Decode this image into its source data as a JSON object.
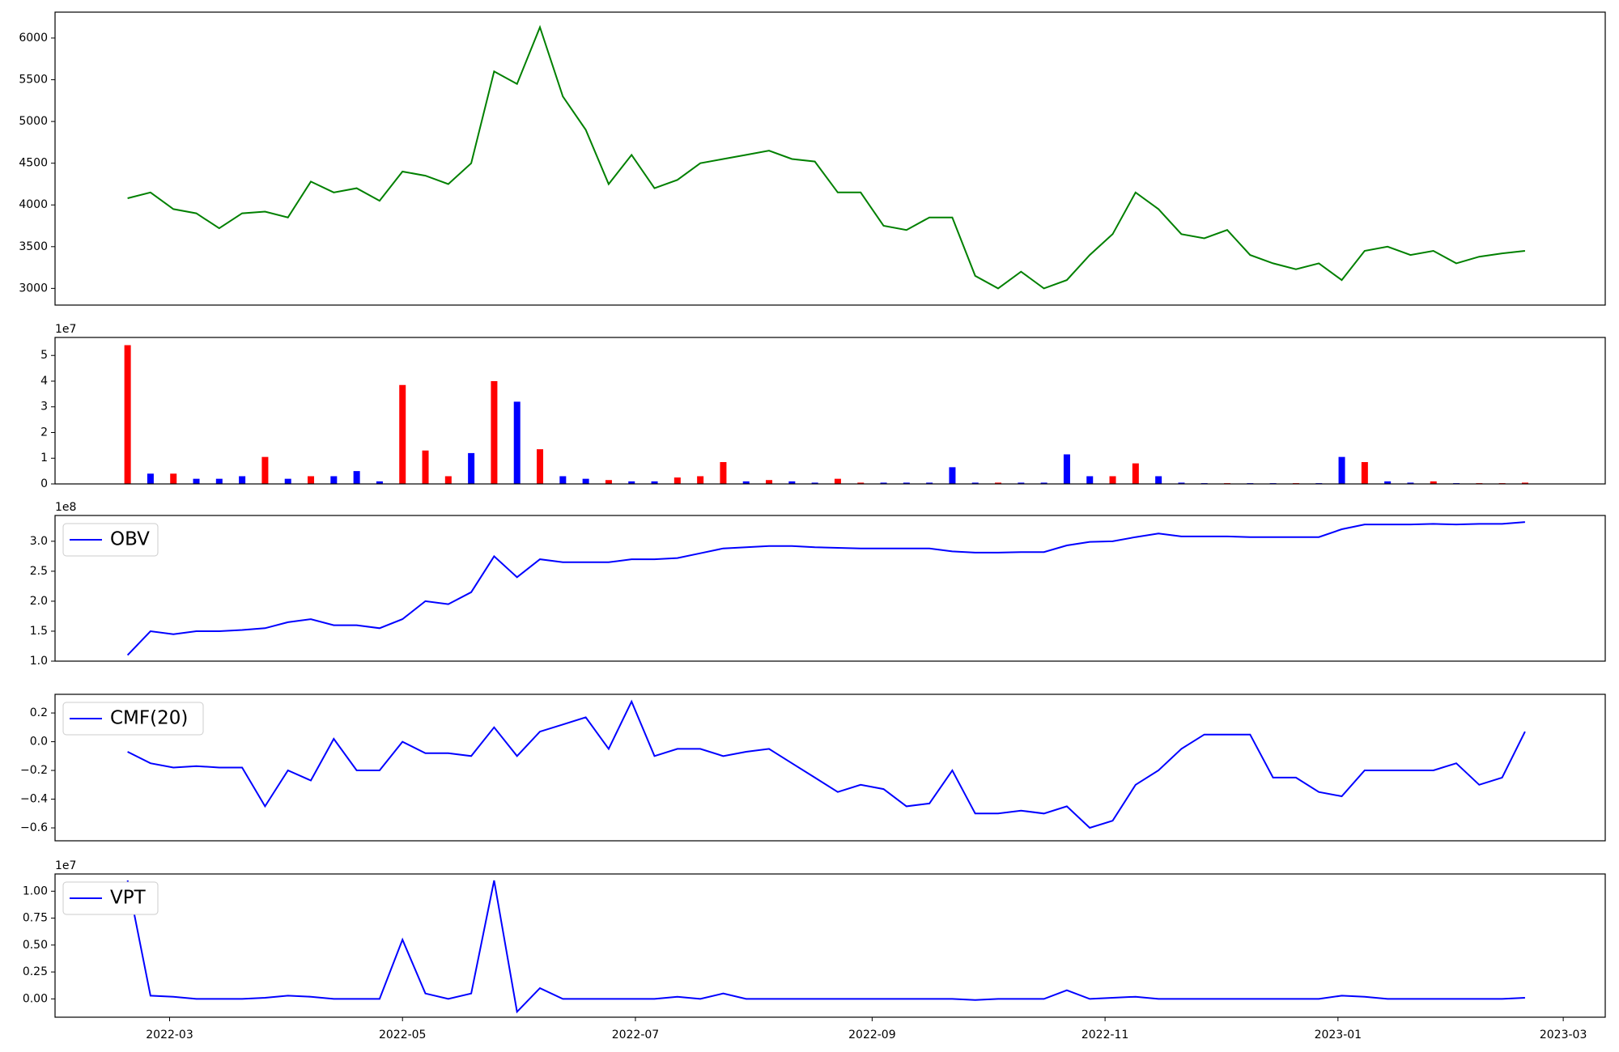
{
  "chart_data": [
    {
      "type": "line",
      "color": "#008000",
      "x": [
        48,
        54,
        60,
        66,
        72,
        78,
        84,
        90,
        96,
        102,
        108,
        114,
        120,
        126,
        132,
        138,
        144,
        150,
        156,
        162,
        168,
        174,
        180,
        186,
        192,
        198,
        204,
        210,
        216,
        222,
        228,
        234,
        240,
        246,
        252,
        258,
        264,
        270,
        276,
        282,
        288,
        294,
        300,
        306,
        312,
        318,
        324,
        330,
        336,
        342,
        348,
        354,
        360,
        366,
        372,
        378,
        384,
        390,
        396,
        402,
        408,
        414
      ],
      "values": [
        4080,
        4150,
        3950,
        3900,
        3720,
        3900,
        3920,
        3850,
        4280,
        4150,
        4200,
        4050,
        4400,
        4350,
        4250,
        4500,
        5600,
        5450,
        6130,
        5300,
        4900,
        4250,
        4600,
        4200,
        4300,
        4500,
        4550,
        4600,
        4650,
        4550,
        4520,
        4150,
        4150,
        3750,
        3700,
        3850,
        3850,
        3150,
        3000,
        3200,
        3000,
        3100,
        3400,
        3650,
        4150,
        3950,
        3650,
        3600,
        3700,
        3400,
        3300,
        3230,
        3300,
        3100,
        3450,
        3500,
        3400,
        3450,
        3300,
        3380,
        3420,
        3450
      ],
      "xlim": [
        29,
        435
      ],
      "ylim": [
        2800,
        6310
      ],
      "yticks": [
        3000,
        3500,
        4000,
        4500,
        5000,
        5500,
        6000
      ]
    },
    {
      "type": "bar",
      "y_offset": "1e7",
      "x": [
        48,
        54,
        60,
        66,
        72,
        78,
        84,
        90,
        96,
        102,
        108,
        114,
        120,
        126,
        132,
        138,
        144,
        150,
        156,
        162,
        168,
        174,
        180,
        186,
        192,
        198,
        204,
        210,
        216,
        222,
        228,
        234,
        240,
        246,
        252,
        258,
        264,
        270,
        276,
        282,
        288,
        294,
        300,
        306,
        312,
        318,
        324,
        330,
        336,
        342,
        348,
        354,
        360,
        366,
        372,
        378,
        384,
        390,
        396,
        402,
        408,
        414
      ],
      "values": [
        5.4,
        0.4,
        0.4,
        0.2,
        0.2,
        0.3,
        1.05,
        0.2,
        0.3,
        0.3,
        0.5,
        0.1,
        3.85,
        1.3,
        0.3,
        1.2,
        4.0,
        3.2,
        1.35,
        0.3,
        0.2,
        0.15,
        0.1,
        0.1,
        0.25,
        0.3,
        0.85,
        0.1,
        0.15,
        0.1,
        0.05,
        0.2,
        0.05,
        0.05,
        0.05,
        0.05,
        0.65,
        0.05,
        0.05,
        0.05,
        0.05,
        1.15,
        0.3,
        0.3,
        0.8,
        0.3,
        0.05,
        0.03,
        0.03,
        0.03,
        0.03,
        0.03,
        0.03,
        1.05,
        0.85,
        0.1,
        0.05,
        0.1,
        0.03,
        0.03,
        0.03,
        0.05
      ],
      "colors": [
        "#ff0000",
        "#0000ff",
        "#ff0000",
        "#0000ff",
        "#0000ff",
        "#0000ff",
        "#ff0000",
        "#0000ff",
        "#ff0000",
        "#0000ff",
        "#0000ff",
        "#0000ff",
        "#ff0000",
        "#ff0000",
        "#ff0000",
        "#0000ff",
        "#ff0000",
        "#0000ff",
        "#ff0000",
        "#0000ff",
        "#0000ff",
        "#ff0000",
        "#0000ff",
        "#0000ff",
        "#ff0000",
        "#ff0000",
        "#ff0000",
        "#0000ff",
        "#ff0000",
        "#0000ff",
        "#0000ff",
        "#ff0000",
        "#ff0000",
        "#0000ff",
        "#0000ff",
        "#0000ff",
        "#0000ff",
        "#0000ff",
        "#ff0000",
        "#0000ff",
        "#0000ff",
        "#0000ff",
        "#0000ff",
        "#ff0000",
        "#ff0000",
        "#0000ff",
        "#0000ff",
        "#0000ff",
        "#ff0000",
        "#0000ff",
        "#0000ff",
        "#ff0000",
        "#0000ff",
        "#0000ff",
        "#ff0000",
        "#0000ff",
        "#0000ff",
        "#ff0000",
        "#0000ff",
        "#ff0000",
        "#ff0000",
        "#ff0000"
      ],
      "xlim": [
        29,
        435
      ],
      "ylim": [
        0,
        5.7
      ],
      "yticks": [
        0,
        1,
        2,
        3,
        4,
        5
      ]
    },
    {
      "type": "line",
      "y_offset": "1e8",
      "legend": "upper left",
      "x": [
        48,
        54,
        60,
        66,
        72,
        78,
        84,
        90,
        96,
        102,
        108,
        114,
        120,
        126,
        132,
        138,
        144,
        150,
        156,
        162,
        168,
        174,
        180,
        186,
        192,
        198,
        204,
        210,
        216,
        222,
        228,
        234,
        240,
        246,
        252,
        258,
        264,
        270,
        276,
        282,
        288,
        294,
        300,
        306,
        312,
        318,
        324,
        330,
        336,
        342,
        348,
        354,
        360,
        366,
        372,
        378,
        384,
        390,
        396,
        402,
        408,
        414
      ],
      "series": [
        {
          "name": "OBV",
          "color": "#0000ff",
          "values": [
            1.1,
            1.5,
            1.45,
            1.5,
            1.5,
            1.52,
            1.55,
            1.65,
            1.7,
            1.6,
            1.6,
            1.55,
            1.7,
            2.0,
            1.95,
            2.15,
            2.75,
            2.4,
            2.7,
            2.65,
            2.65,
            2.65,
            2.7,
            2.7,
            2.72,
            2.8,
            2.88,
            2.9,
            2.92,
            2.92,
            2.9,
            2.89,
            2.88,
            2.88,
            2.88,
            2.88,
            2.83,
            2.81,
            2.81,
            2.82,
            2.82,
            2.93,
            2.99,
            3.0,
            3.07,
            3.13,
            3.08,
            3.08,
            3.08,
            3.07,
            3.07,
            3.07,
            3.07,
            3.2,
            3.28,
            3.28,
            3.28,
            3.29,
            3.28,
            3.29,
            3.29,
            3.32
          ]
        }
      ],
      "xlim": [
        29,
        435
      ],
      "ylim": [
        1.0,
        3.43
      ],
      "yticks": [
        {
          "value": 1.0,
          "label": "1.0"
        },
        1.5,
        {
          "value": 2.0,
          "label": "2.0"
        },
        2.5,
        {
          "value": 3.0,
          "label": "3.0"
        }
      ]
    },
    {
      "type": "line",
      "legend": "upper left",
      "x": [
        48,
        54,
        60,
        66,
        72,
        78,
        84,
        90,
        96,
        102,
        108,
        114,
        120,
        126,
        132,
        138,
        144,
        150,
        156,
        162,
        168,
        174,
        180,
        186,
        192,
        198,
        204,
        210,
        216,
        222,
        228,
        234,
        240,
        246,
        252,
        258,
        264,
        270,
        276,
        282,
        288,
        294,
        300,
        306,
        312,
        318,
        324,
        330,
        336,
        342,
        348,
        354,
        360,
        366,
        372,
        378,
        384,
        390,
        396,
        402,
        408,
        414
      ],
      "series": [
        {
          "name": "CMF(20)",
          "color": "#0000ff",
          "values": [
            -0.07,
            -0.15,
            -0.18,
            -0.17,
            -0.18,
            -0.18,
            -0.45,
            -0.2,
            -0.27,
            0.02,
            -0.2,
            -0.2,
            0.0,
            -0.08,
            -0.08,
            -0.1,
            0.1,
            -0.1,
            0.07,
            0.12,
            0.17,
            -0.05,
            0.28,
            -0.1,
            -0.05,
            -0.05,
            -0.1,
            -0.07,
            -0.05,
            -0.15,
            -0.25,
            -0.35,
            -0.3,
            -0.33,
            -0.45,
            -0.43,
            -0.2,
            -0.5,
            -0.5,
            -0.48,
            -0.5,
            -0.45,
            -0.6,
            -0.55,
            -0.3,
            -0.2,
            -0.05,
            0.05,
            0.05,
            0.05,
            -0.25,
            -0.25,
            -0.35,
            -0.38,
            -0.2,
            -0.2,
            -0.2,
            -0.2,
            -0.15,
            -0.3,
            -0.25,
            0.07
          ]
        }
      ],
      "xlim": [
        29,
        435
      ],
      "ylim": [
        -0.69,
        0.33
      ],
      "yticks": [
        {
          "value": -0.6,
          "label": "−0.6"
        },
        {
          "value": -0.4,
          "label": "−0.4"
        },
        {
          "value": -0.2,
          "label": "−0.2"
        },
        {
          "value": 0.0,
          "label": "0.0"
        },
        0.2
      ]
    },
    {
      "type": "line",
      "y_offset": "1e7",
      "legend": "upper left",
      "x": [
        48,
        54,
        60,
        66,
        72,
        78,
        84,
        90,
        96,
        102,
        108,
        114,
        120,
        126,
        132,
        138,
        144,
        150,
        156,
        162,
        168,
        174,
        180,
        186,
        192,
        198,
        204,
        210,
        216,
        222,
        228,
        234,
        240,
        246,
        252,
        258,
        264,
        270,
        276,
        282,
        288,
        294,
        300,
        306,
        312,
        318,
        324,
        330,
        336,
        342,
        348,
        354,
        360,
        366,
        372,
        378,
        384,
        390,
        396,
        402,
        408,
        414
      ],
      "series": [
        {
          "name": "VPT",
          "color": "#0000ff",
          "values": [
            1.1,
            0.03,
            0.02,
            0,
            0,
            0,
            0.01,
            0.03,
            0.02,
            0,
            0,
            0,
            0.55,
            0.05,
            0,
            0.05,
            1.1,
            -0.12,
            0.1,
            0,
            0,
            0,
            0,
            0,
            0.02,
            0,
            0.05,
            0,
            0,
            0,
            0,
            0,
            0,
            0,
            0,
            0,
            0,
            -0.01,
            0,
            0,
            0,
            0.08,
            0,
            0.01,
            0.02,
            0,
            0,
            0,
            0,
            0,
            0,
            0,
            0,
            0.03,
            0.02,
            0,
            0,
            0,
            0,
            0,
            0,
            0.01
          ]
        }
      ],
      "xlim": [
        29,
        435
      ],
      "ylim": [
        -0.17,
        1.16
      ],
      "yticks": [
        {
          "value": 0,
          "label": "0.00"
        },
        0.25,
        {
          "value": 0.5,
          "label": "0.50"
        },
        0.75,
        {
          "value": 1.0,
          "label": "1.00"
        }
      ],
      "xticks": [
        {
          "value": 59,
          "label": "2022-03"
        },
        {
          "value": 120,
          "label": "2022-05"
        },
        {
          "value": 181,
          "label": "2022-07"
        },
        {
          "value": 243,
          "label": "2022-09"
        },
        {
          "value": 304,
          "label": "2022-11"
        },
        {
          "value": 365,
          "label": "2023-01"
        },
        {
          "value": 424,
          "label": "2023-03"
        }
      ]
    }
  ]
}
